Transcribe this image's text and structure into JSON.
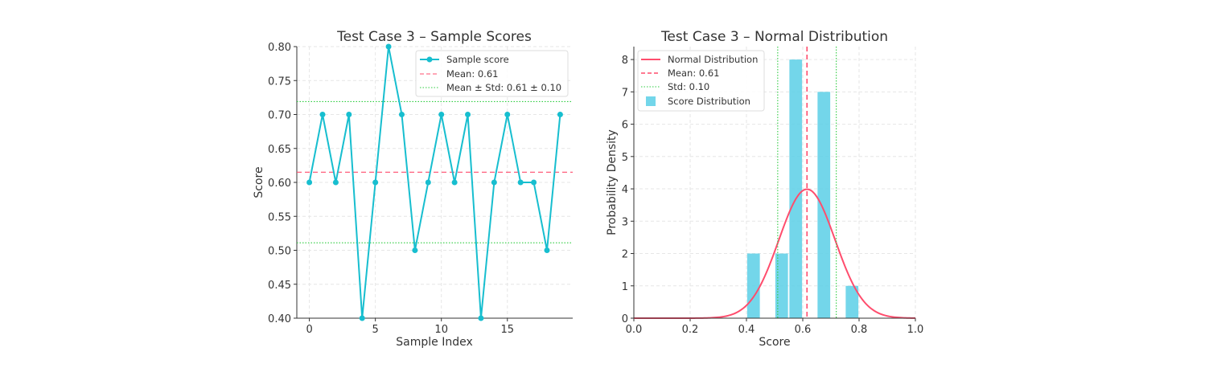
{
  "chart_data": [
    {
      "type": "line",
      "title": "Test Case 3 – Sample Scores",
      "xlabel": "Sample Index",
      "ylabel": "Score",
      "xlim": [
        -0.95,
        19.95
      ],
      "ylim": [
        0.4,
        0.8
      ],
      "xticks": [
        0,
        5,
        10,
        15
      ],
      "yticks": [
        "0.40",
        "0.45",
        "0.50",
        "0.55",
        "0.60",
        "0.65",
        "0.70",
        "0.75",
        "0.80"
      ],
      "grid": true,
      "legend_position": "top-right",
      "series": [
        {
          "name": "Sample score",
          "color": "#17becf",
          "x": [
            0,
            1,
            2,
            3,
            4,
            5,
            6,
            7,
            8,
            9,
            10,
            11,
            12,
            13,
            14,
            15,
            16,
            17,
            18,
            19
          ],
          "y": [
            0.6,
            0.7,
            0.6,
            0.7,
            0.4,
            0.6,
            0.8,
            0.7,
            0.5,
            0.6,
            0.7,
            0.6,
            0.7,
            0.4,
            0.6,
            0.7,
            0.6,
            0.6,
            0.5,
            0.7
          ]
        }
      ],
      "hlines": [
        {
          "name": "Mean: 0.61",
          "y": 0.615,
          "color": "#ff4d6d",
          "style": "dashed"
        },
        {
          "name": "Mean ± Std: 0.61 ± 0.10",
          "y": 0.719,
          "color": "#2ecc40",
          "style": "dotted"
        },
        {
          "y": 0.511,
          "color": "#2ecc40",
          "style": "dotted"
        }
      ]
    },
    {
      "type": "bar",
      "title": "Test Case 3 – Normal Distribution",
      "xlabel": "Score",
      "ylabel": "Probability Density",
      "xlim": [
        0.0,
        1.0
      ],
      "ylim": [
        0,
        8.4
      ],
      "xticks": [
        "0.0",
        "0.2",
        "0.4",
        "0.6",
        "0.8",
        "1.0"
      ],
      "yticks": [
        "0",
        "1",
        "2",
        "3",
        "4",
        "5",
        "6",
        "7",
        "8"
      ],
      "grid": true,
      "legend_position": "top-left",
      "histogram": {
        "name": "Score Distribution",
        "color": "#5bcfe6",
        "bins": [
          [
            0.4,
            0.45
          ],
          [
            0.45,
            0.5
          ],
          [
            0.5,
            0.55
          ],
          [
            0.55,
            0.6
          ],
          [
            0.6,
            0.65
          ],
          [
            0.65,
            0.7
          ],
          [
            0.7,
            0.75
          ],
          [
            0.75,
            0.8
          ]
        ],
        "density": [
          2,
          0,
          2,
          8,
          0,
          7,
          0,
          1
        ]
      },
      "normal": {
        "name": "Normal Distribution",
        "mean": 0.615,
        "std": 0.1,
        "color": "#ff4d6d"
      },
      "vlines": [
        {
          "name": "Mean: 0.61",
          "x": 0.615,
          "color": "#ff4d6d",
          "style": "dashed"
        },
        {
          "name": "Std: 0.10",
          "x": 0.511,
          "color": "#2ecc40",
          "style": "dotted"
        },
        {
          "x": 0.719,
          "color": "#2ecc40",
          "style": "dotted"
        }
      ]
    }
  ]
}
